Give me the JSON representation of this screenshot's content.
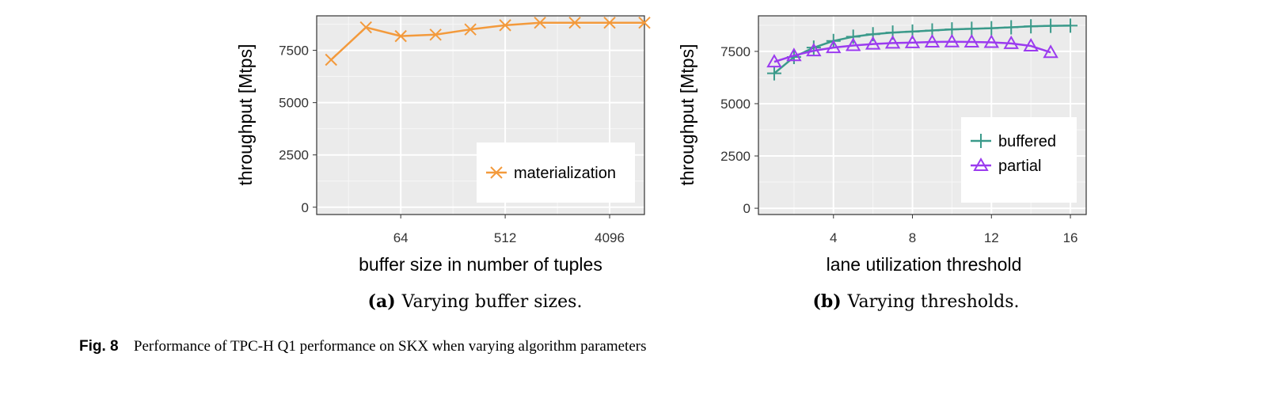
{
  "chart_data": [
    {
      "type": "line",
      "subcaption_label": "(a)",
      "subcaption_text": "Varying buffer sizes.",
      "xlabel": "buffer size in number of tuples",
      "ylabel": "throughput [Mtps]",
      "x_scale": "log2",
      "xlim": [
        12,
        8192
      ],
      "ylim": [
        -350,
        9150
      ],
      "x_ticks": [
        64,
        512,
        4096
      ],
      "x_tick_labels": [
        "64",
        "512",
        "4096"
      ],
      "y_ticks": [
        0,
        2500,
        5000,
        7500
      ],
      "y_tick_labels": [
        "0",
        "2500",
        "5000",
        "7500"
      ],
      "grid": true,
      "legend_position": "bottom-right",
      "series": [
        {
          "name": "materialization",
          "color": "#f39a3c",
          "marker": "x",
          "x": [
            16,
            32,
            64,
            128,
            256,
            512,
            1024,
            2048,
            4096,
            8192
          ],
          "y": [
            7050,
            8600,
            8180,
            8250,
            8500,
            8700,
            8820,
            8820,
            8820,
            8820
          ]
        }
      ]
    },
    {
      "type": "line",
      "subcaption_label": "(b)",
      "subcaption_text": "Varying thresholds.",
      "xlabel": "lane utilization threshold",
      "ylabel": "throughput [Mtps]",
      "x_scale": "linear",
      "xlim": [
        0.2,
        16.8
      ],
      "ylim": [
        -300,
        9200
      ],
      "x_ticks": [
        4,
        8,
        12,
        16
      ],
      "x_tick_labels": [
        "4",
        "8",
        "12",
        "16"
      ],
      "y_ticks": [
        0,
        2500,
        5000,
        7500
      ],
      "y_tick_labels": [
        "0",
        "2500",
        "5000",
        "7500"
      ],
      "grid": true,
      "legend_position": "bottom-right",
      "series": [
        {
          "name": "buffered",
          "color": "#3a9a8a",
          "marker": "plus",
          "x": [
            1,
            2,
            3,
            4,
            5,
            6,
            7,
            8,
            9,
            10,
            11,
            12,
            13,
            14,
            15,
            16
          ],
          "y": [
            6450,
            7230,
            7680,
            8000,
            8200,
            8320,
            8400,
            8450,
            8500,
            8550,
            8580,
            8610,
            8650,
            8700,
            8720,
            8730
          ]
        },
        {
          "name": "partial",
          "color": "#9b3bef",
          "marker": "triangle",
          "x": [
            1,
            2,
            3,
            4,
            5,
            6,
            7,
            8,
            9,
            10,
            11,
            12,
            13,
            14,
            15
          ],
          "y": [
            7000,
            7300,
            7530,
            7680,
            7780,
            7850,
            7900,
            7920,
            7950,
            7960,
            7950,
            7930,
            7880,
            7760,
            7450
          ]
        }
      ]
    }
  ],
  "figure_caption": {
    "label": "Fig. 8",
    "text": "Performance of TPC-H Q1 performance on SKX when varying algorithm parameters"
  }
}
